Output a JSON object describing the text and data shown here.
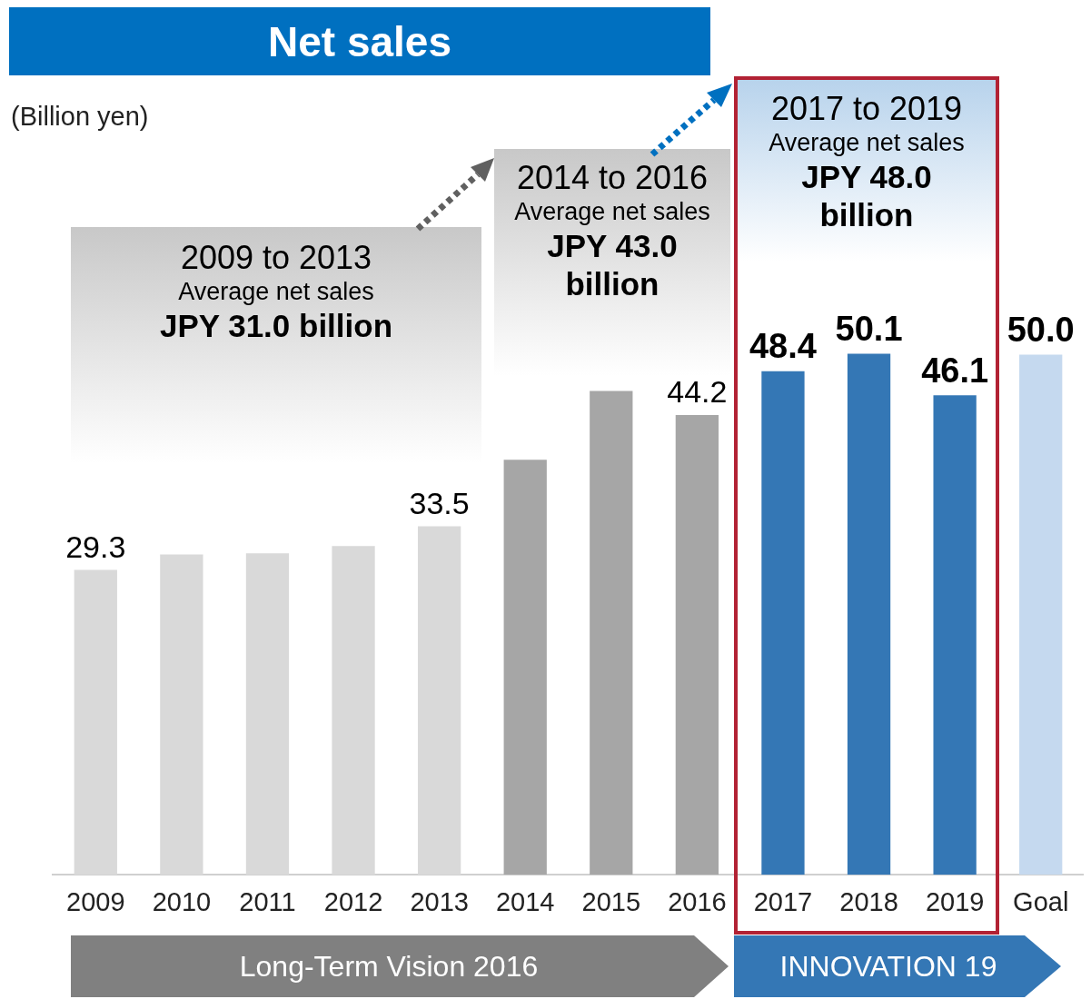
{
  "chart_data": {
    "type": "bar",
    "title": "Net sales",
    "categories": [
      "2009",
      "2010",
      "2011",
      "2012",
      "2013",
      "2014",
      "2015",
      "2016",
      "2017",
      "2018",
      "2019",
      "Goal"
    ],
    "values": [
      29.3,
      30.8,
      30.9,
      31.6,
      33.5,
      39.9,
      46.5,
      44.2,
      48.4,
      50.1,
      46.1,
      50.0
    ],
    "colors": [
      "#d9d9d9",
      "#d9d9d9",
      "#d9d9d9",
      "#d9d9d9",
      "#d9d9d9",
      "#a6a6a6",
      "#a6a6a6",
      "#a6a6a6",
      "#3477b5",
      "#3477b5",
      "#3477b5",
      "#c5d9ef"
    ],
    "value_labels": [
      "29.3",
      null,
      null,
      null,
      "33.5",
      null,
      null,
      "44.2",
      "48.4",
      "50.1",
      "46.1",
      "50.0"
    ],
    "grid": false,
    "legend": false,
    "tick_labels": "x",
    "annotations": [
      "(Billion yen)",
      "2009 to 2013\nAverage net sales\nJPY 31.0 billion",
      "2014 to 2016\nAverage net sales\nJPY 43.0 billion",
      "2017 to 2019\nAverage net sales\nJPY 48.0 billion",
      "Long-Term Vision 2016",
      "INNOVATION 19"
    ]
  }
}
